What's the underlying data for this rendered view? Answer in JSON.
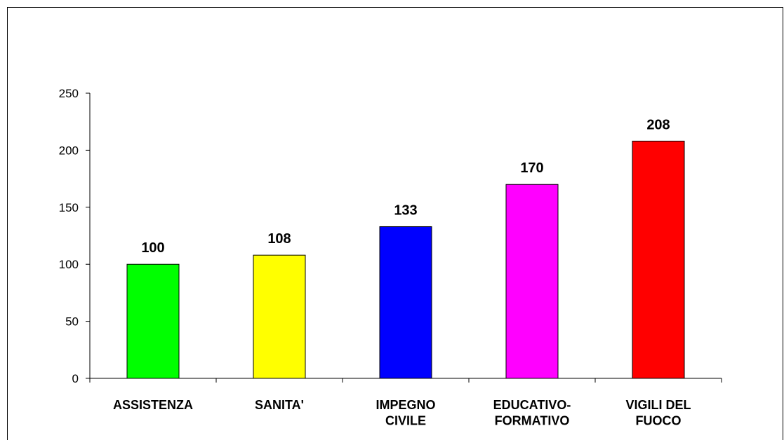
{
  "chart_data": {
    "type": "bar",
    "categories": [
      "ASSISTENZA",
      "SANITA'",
      "IMPEGNO\nCIVILE",
      "EDUCATIVO-\nFORMATIVO",
      "VIGILI DEL\nFUOCO"
    ],
    "values": [
      100,
      108,
      133,
      170,
      208
    ],
    "colors": [
      "#00ff00",
      "#ffff00",
      "#0000ff",
      "#ff00ff",
      "#ff0000"
    ],
    "ylim": [
      0,
      250
    ],
    "yticks": [
      0,
      50,
      100,
      150,
      200,
      250
    ],
    "grid": false
  }
}
